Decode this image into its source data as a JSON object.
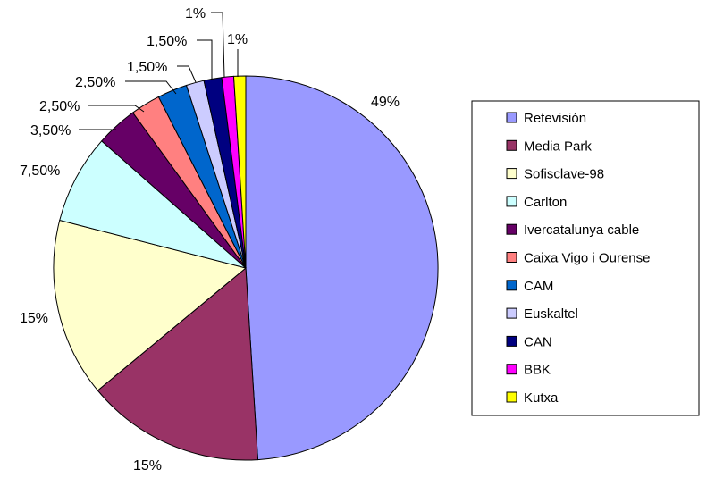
{
  "chart_data": {
    "type": "pie",
    "title": "",
    "legend_position": "right",
    "slices": [
      {
        "label": "Retevisión",
        "value": 49,
        "display": "49%",
        "color": "#9999FF"
      },
      {
        "label": "Media Park",
        "value": 15,
        "display": "15%",
        "color": "#993366"
      },
      {
        "label": "Sofisclave-98",
        "value": 15,
        "display": "15%",
        "color": "#FFFFCC"
      },
      {
        "label": "Carlton",
        "value": 7.5,
        "display": "7,50%",
        "color": "#CCFFFF"
      },
      {
        "label": "Ivercatalunya cable",
        "value": 3.5,
        "display": "3,50%",
        "color": "#660066"
      },
      {
        "label": "Caixa Vigo i Ourense",
        "value": 2.5,
        "display": "2,50%",
        "color": "#FF8080"
      },
      {
        "label": "CAM",
        "value": 2.5,
        "display": "2,50%",
        "color": "#0066CC"
      },
      {
        "label": "Euskaltel",
        "value": 1.5,
        "display": "1,50%",
        "color": "#CCCCFF"
      },
      {
        "label": "CAN",
        "value": 1.5,
        "display": "1,50%",
        "color": "#000080"
      },
      {
        "label": "BBK",
        "value": 1,
        "display": "1%",
        "color": "#FF00FF"
      },
      {
        "label": "Kutxa",
        "value": 1,
        "display": "1%",
        "color": "#FFFF00"
      }
    ]
  }
}
